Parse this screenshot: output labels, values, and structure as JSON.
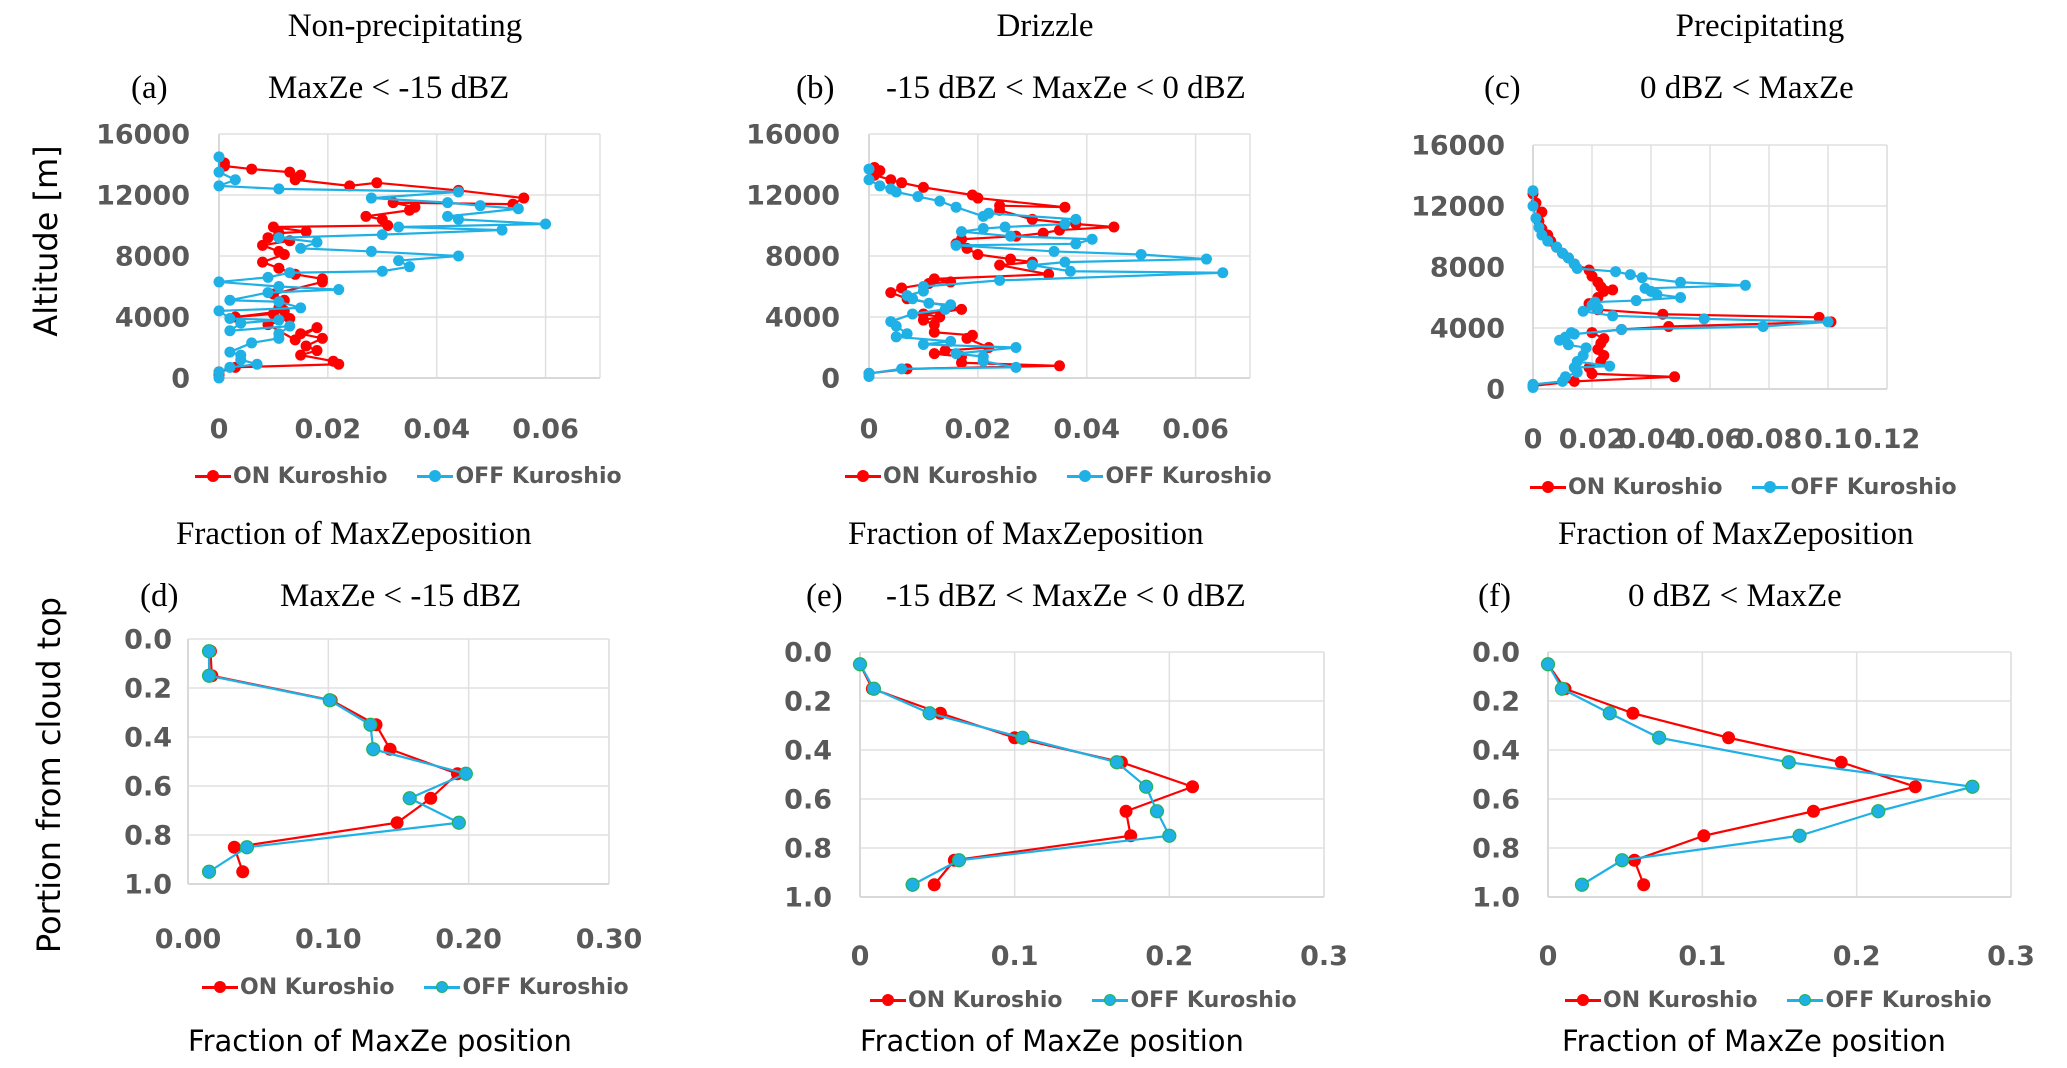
{
  "figure": {
    "categories": [
      "Non-precipitating",
      "Drizzle",
      "Precipitating"
    ],
    "y_label_top": "Altitude [m]",
    "y_label_bottom": "Portion from cloud top",
    "x_label_top": "Fraction of MaxZeposition",
    "x_label_bottom": "Fraction of MaxZe position",
    "colors": {
      "on": "#ff0000",
      "off": "#1fb0e6",
      "off_marker_edge": "#22b35a",
      "grid": "#e0e0e0",
      "tick": "#595959"
    }
  },
  "chart_data": [
    {
      "id": "a",
      "panel_label": "(a)",
      "title": "MaxZe < -15 dBZ",
      "type": "line",
      "xlabel": "Fraction of MaxZeposition",
      "ylabel": "Altitude [m]",
      "xlim": [
        0,
        0.07
      ],
      "ylim": [
        0,
        16000
      ],
      "xticks": [
        0,
        0.02,
        0.04,
        0.06
      ],
      "xtick_labels": [
        "0",
        "0.02",
        "0.04",
        "0.06"
      ],
      "yticks": [
        0,
        4000,
        8000,
        12000,
        16000
      ],
      "ytick_labels": [
        "0",
        "4000",
        "8000",
        "12000",
        "16000"
      ],
      "legend": [
        "ON Kuroshio",
        "OFF Kuroshio"
      ],
      "legend_position": "bottom",
      "grid": true,
      "series": [
        {
          "name": "ON Kuroshio",
          "x": [
            0.0,
            0.0,
            0.003,
            0.022,
            0.021,
            0.015,
            0.018,
            0.016,
            0.019,
            0.015,
            0.018,
            0.014,
            0.009,
            0.013,
            0.01,
            0.003,
            0.012,
            0.011,
            0.012,
            0.01,
            0.019,
            0.019,
            0.014,
            0.011,
            0.008,
            0.012,
            0.011,
            0.008,
            0.013,
            0.009,
            0.011,
            0.016,
            0.01,
            0.031,
            0.03,
            0.027,
            0.035,
            0.036,
            0.032,
            0.054,
            0.056,
            0.044,
            0.029,
            0.024,
            0.014,
            0.015,
            0.013,
            0.006,
            0.001,
            0.001
          ],
          "y": [
            200,
            400,
            700,
            900,
            1100,
            1500,
            1800,
            2100,
            2600,
            2900,
            3300,
            2500,
            3500,
            3900,
            4200,
            4000,
            4400,
            4600,
            5100,
            5500,
            6300,
            6500,
            6800,
            7200,
            7600,
            8100,
            8300,
            8700,
            9000,
            9200,
            9500,
            9600,
            9900,
            10000,
            10400,
            10600,
            11000,
            11200,
            11500,
            11400,
            11800,
            12300,
            12800,
            12600,
            13000,
            13300,
            13500,
            13700,
            13900,
            14100
          ]
        },
        {
          "name": "OFF Kuroshio",
          "x": [
            0.0,
            0.0,
            0.002,
            0.007,
            0.004,
            0.004,
            0.002,
            0.006,
            0.011,
            0.011,
            0.013,
            0.002,
            0.004,
            0.011,
            0.002,
            0.0,
            0.015,
            0.011,
            0.002,
            0.009,
            0.022,
            0.011,
            0.0,
            0.009,
            0.013,
            0.03,
            0.035,
            0.033,
            0.044,
            0.028,
            0.015,
            0.018,
            0.011,
            0.03,
            0.052,
            0.033,
            0.06,
            0.044,
            0.042,
            0.055,
            0.048,
            0.042,
            0.028,
            0.044,
            0.011,
            0.0,
            0.003,
            0.0,
            0.0
          ],
          "y": [
            0,
            400,
            700,
            900,
            1200,
            1500,
            1700,
            2300,
            2600,
            2900,
            3400,
            3100,
            3600,
            3800,
            3900,
            4400,
            4600,
            5000,
            5100,
            5600,
            5800,
            6000,
            6300,
            6600,
            6900,
            7000,
            7300,
            7700,
            8000,
            8300,
            8500,
            8900,
            9200,
            9400,
            9700,
            9900,
            10100,
            10400,
            10600,
            11100,
            11300,
            11500,
            11800,
            12200,
            12400,
            12600,
            13000,
            13500,
            14500
          ]
        }
      ]
    },
    {
      "id": "b",
      "panel_label": "(b)",
      "title": "-15 dBZ < MaxZe < 0 dBZ",
      "type": "line",
      "xlabel": "Fraction of MaxZeposition",
      "ylabel": "",
      "xlim": [
        0,
        0.07
      ],
      "ylim": [
        0,
        16000
      ],
      "xticks": [
        0,
        0.02,
        0.04,
        0.06
      ],
      "xtick_labels": [
        "0",
        "0.02",
        "0.04",
        "0.06"
      ],
      "yticks": [
        0,
        4000,
        8000,
        12000,
        16000
      ],
      "ytick_labels": [
        "0",
        "4000",
        "8000",
        "12000",
        "16000"
      ],
      "legend": [
        "ON Kuroshio",
        "OFF Kuroshio"
      ],
      "legend_position": "bottom",
      "grid": true,
      "series": [
        {
          "name": "ON Kuroshio",
          "x": [
            0.0,
            0.007,
            0.035,
            0.017,
            0.017,
            0.012,
            0.014,
            0.022,
            0.018,
            0.019,
            0.012,
            0.012,
            0.01,
            0.013,
            0.01,
            0.017,
            0.015,
            0.007,
            0.004,
            0.006,
            0.011,
            0.015,
            0.012,
            0.033,
            0.024,
            0.03,
            0.026,
            0.02,
            0.018,
            0.016,
            0.017,
            0.027,
            0.032,
            0.035,
            0.045,
            0.038,
            0.03,
            0.024,
            0.024,
            0.036,
            0.02,
            0.019,
            0.01,
            0.006,
            0.004,
            0.001,
            0.002,
            0.001
          ],
          "y": [
            300,
            600,
            800,
            1000,
            1400,
            1600,
            1800,
            2000,
            2600,
            2800,
            3000,
            3500,
            3800,
            4000,
            4200,
            4500,
            4700,
            5200,
            5600,
            5900,
            6200,
            6300,
            6500,
            6800,
            7400,
            7600,
            7800,
            8100,
            8500,
            8800,
            9100,
            9300,
            9500,
            9700,
            9900,
            10100,
            10400,
            11000,
            11300,
            11200,
            11800,
            12000,
            12500,
            12800,
            13000,
            13300,
            13600,
            13800
          ]
        },
        {
          "name": "OFF Kuroshio",
          "x": [
            0.0,
            0.0,
            0.006,
            0.027,
            0.021,
            0.021,
            0.016,
            0.027,
            0.01,
            0.015,
            0.005,
            0.007,
            0.005,
            0.004,
            0.008,
            0.014,
            0.015,
            0.011,
            0.008,
            0.007,
            0.01,
            0.01,
            0.024,
            0.065,
            0.037,
            0.03,
            0.036,
            0.062,
            0.05,
            0.034,
            0.016,
            0.038,
            0.041,
            0.026,
            0.017,
            0.021,
            0.025,
            0.036,
            0.038,
            0.022,
            0.021,
            0.016,
            0.013,
            0.009,
            0.005,
            0.004,
            0.002,
            0.0,
            0.0
          ],
          "y": [
            100,
            300,
            600,
            700,
            1100,
            1400,
            1600,
            2000,
            2200,
            2400,
            2700,
            2900,
            3400,
            3700,
            4200,
            4500,
            4800,
            4900,
            5200,
            5400,
            5700,
            6000,
            6400,
            6900,
            7000,
            7400,
            7600,
            7800,
            8100,
            8300,
            8700,
            8800,
            9100,
            9300,
            9600,
            9800,
            9900,
            10100,
            10400,
            10800,
            10600,
            11200,
            11600,
            11900,
            12200,
            12400,
            12600,
            13000,
            13700
          ]
        }
      ]
    },
    {
      "id": "c",
      "panel_label": "(c)",
      "title": "0 dBZ < MaxZe",
      "type": "line",
      "xlabel": "Fraction of MaxZeposition",
      "ylabel": "",
      "xlim": [
        0,
        0.12
      ],
      "ylim": [
        0,
        16000
      ],
      "xticks": [
        0,
        0.02,
        0.04,
        0.06,
        0.08,
        0.1,
        0.12
      ],
      "xtick_labels": [
        "0",
        "0.02",
        "0.04",
        "0.06",
        "0.08",
        "0.1",
        "0.12"
      ],
      "yticks": [
        0,
        4000,
        8000,
        12000,
        16000
      ],
      "ytick_labels": [
        "0",
        "4000",
        "8000",
        "12000",
        "16000"
      ],
      "legend": [
        "ON Kuroshio",
        "OFF Kuroshio"
      ],
      "legend_position": "bottom",
      "grid": true,
      "series": [
        {
          "name": "ON Kuroshio",
          "x": [
            0.0,
            0.014,
            0.048,
            0.02,
            0.019,
            0.023,
            0.024,
            0.022,
            0.023,
            0.024,
            0.02,
            0.03,
            0.046,
            0.101,
            0.097,
            0.044,
            0.022,
            0.019,
            0.022,
            0.024,
            0.023,
            0.027,
            0.022,
            0.02,
            0.019,
            0.014,
            0.012,
            0.01,
            0.008,
            0.006,
            0.005,
            0.003,
            0.002,
            0.003,
            0.001,
            0.0
          ],
          "y": [
            200,
            500,
            800,
            1000,
            1400,
            1800,
            2200,
            2600,
            3000,
            3300,
            3700,
            3900,
            4100,
            4400,
            4700,
            4900,
            5200,
            5600,
            6000,
            6400,
            6700,
            6500,
            7000,
            7400,
            7800,
            8200,
            8600,
            8900,
            9300,
            9700,
            10100,
            10500,
            11000,
            11600,
            12200,
            12800
          ]
        },
        {
          "name": "OFF Kuroshio",
          "x": [
            0.0,
            0.0,
            0.01,
            0.011,
            0.015,
            0.014,
            0.026,
            0.015,
            0.017,
            0.018,
            0.012,
            0.011,
            0.009,
            0.013,
            0.014,
            0.03,
            0.078,
            0.1,
            0.058,
            0.027,
            0.017,
            0.022,
            0.02,
            0.021,
            0.035,
            0.05,
            0.042,
            0.04,
            0.038,
            0.072,
            0.05,
            0.037,
            0.033,
            0.028,
            0.015,
            0.014,
            0.012,
            0.01,
            0.008,
            0.005,
            0.003,
            0.002,
            0.001,
            0.0,
            0.0
          ],
          "y": [
            100,
            300,
            500,
            800,
            1100,
            1400,
            1500,
            1800,
            2200,
            2700,
            2900,
            3400,
            3200,
            3700,
            3600,
            3900,
            4100,
            4400,
            4600,
            4800,
            5100,
            5300,
            5500,
            5700,
            5800,
            6000,
            6200,
            6400,
            6600,
            6800,
            7000,
            7300,
            7500,
            7700,
            7900,
            8200,
            8600,
            8900,
            9300,
            9700,
            10100,
            10600,
            11200,
            12000,
            13000
          ]
        }
      ]
    },
    {
      "id": "d",
      "panel_label": "(d)",
      "title": "MaxZe < -15 dBZ",
      "type": "line",
      "xlabel": "Fraction of MaxZe position",
      "ylabel": "Portion from cloud top",
      "xlim": [
        0,
        0.3
      ],
      "ylim": [
        0,
        1.0
      ],
      "y_inverted": true,
      "xticks": [
        0,
        0.1,
        0.2,
        0.3
      ],
      "xtick_labels": [
        "0.00",
        "0.10",
        "0.20",
        "0.30"
      ],
      "yticks": [
        0,
        0.2,
        0.4,
        0.6,
        0.8,
        1.0
      ],
      "ytick_labels": [
        "0.0",
        "0.2",
        "0.4",
        "0.6",
        "0.8",
        "1.0"
      ],
      "legend": [
        "ON Kuroshio",
        "OFF Kuroshio"
      ],
      "legend_position": "bottom",
      "grid": true,
      "series": [
        {
          "name": "ON Kuroshio",
          "y": [
            0.05,
            0.15,
            0.25,
            0.35,
            0.45,
            0.55,
            0.65,
            0.75,
            0.85,
            0.95
          ],
          "x": [
            0.016,
            0.017,
            0.102,
            0.134,
            0.144,
            0.192,
            0.173,
            0.149,
            0.033,
            0.039
          ]
        },
        {
          "name": "OFF Kuroshio",
          "y": [
            0.05,
            0.15,
            0.25,
            0.35,
            0.45,
            0.55,
            0.65,
            0.75,
            0.85,
            0.95
          ],
          "x": [
            0.015,
            0.015,
            0.101,
            0.13,
            0.132,
            0.198,
            0.158,
            0.193,
            0.042,
            0.015
          ]
        }
      ]
    },
    {
      "id": "e",
      "panel_label": "(e)",
      "title": "-15 dBZ < MaxZe < 0 dBZ",
      "type": "line",
      "xlabel": "Fraction of MaxZe position",
      "ylabel": "",
      "xlim": [
        0,
        0.3
      ],
      "ylim": [
        0,
        1.0
      ],
      "y_inverted": true,
      "xticks": [
        0,
        0.1,
        0.2,
        0.3
      ],
      "xtick_labels": [
        "0",
        "0.1",
        "0.2",
        "0.3"
      ],
      "yticks": [
        0,
        0.2,
        0.4,
        0.6,
        0.8,
        1.0
      ],
      "ytick_labels": [
        "0.0",
        "0.2",
        "0.4",
        "0.6",
        "0.8",
        "1.0"
      ],
      "legend": [
        "ON Kuroshio",
        "OFF Kuroshio"
      ],
      "legend_position": "bottom",
      "grid": true,
      "series": [
        {
          "name": "ON Kuroshio",
          "y": [
            0.05,
            0.15,
            0.25,
            0.35,
            0.45,
            0.55,
            0.65,
            0.75,
            0.85,
            0.95
          ],
          "x": [
            0.0,
            0.008,
            0.052,
            0.1,
            0.169,
            0.215,
            0.172,
            0.175,
            0.061,
            0.048
          ]
        },
        {
          "name": "OFF Kuroshio",
          "y": [
            0.05,
            0.15,
            0.25,
            0.35,
            0.45,
            0.55,
            0.65,
            0.75,
            0.85,
            0.95
          ],
          "x": [
            0.0,
            0.009,
            0.045,
            0.105,
            0.166,
            0.185,
            0.192,
            0.2,
            0.064,
            0.034
          ]
        }
      ]
    },
    {
      "id": "f",
      "panel_label": "(f)",
      "title": "0 dBZ < MaxZe",
      "type": "line",
      "xlabel": "Fraction of MaxZe position",
      "ylabel": "",
      "xlim": [
        0,
        0.3
      ],
      "ylim": [
        0,
        1.0
      ],
      "y_inverted": true,
      "xticks": [
        0,
        0.1,
        0.2,
        0.3
      ],
      "xtick_labels": [
        "0",
        "0.1",
        "0.2",
        "0.3"
      ],
      "yticks": [
        0,
        0.2,
        0.4,
        0.6,
        0.8,
        1.0
      ],
      "ytick_labels": [
        "0.0",
        "0.2",
        "0.4",
        "0.6",
        "0.8",
        "1.0"
      ],
      "legend": [
        "ON Kuroshio",
        "OFF Kuroshio"
      ],
      "legend_position": "bottom",
      "grid": true,
      "series": [
        {
          "name": "ON Kuroshio",
          "y": [
            0.05,
            0.15,
            0.25,
            0.35,
            0.45,
            0.55,
            0.65,
            0.75,
            0.85,
            0.95
          ],
          "x": [
            0.0,
            0.011,
            0.055,
            0.117,
            0.19,
            0.238,
            0.172,
            0.101,
            0.056,
            0.062
          ]
        },
        {
          "name": "OFF Kuroshio",
          "y": [
            0.05,
            0.15,
            0.25,
            0.35,
            0.45,
            0.55,
            0.65,
            0.75,
            0.85,
            0.95
          ],
          "x": [
            0.0,
            0.009,
            0.04,
            0.072,
            0.156,
            0.275,
            0.214,
            0.163,
            0.048,
            0.022
          ]
        }
      ]
    }
  ]
}
